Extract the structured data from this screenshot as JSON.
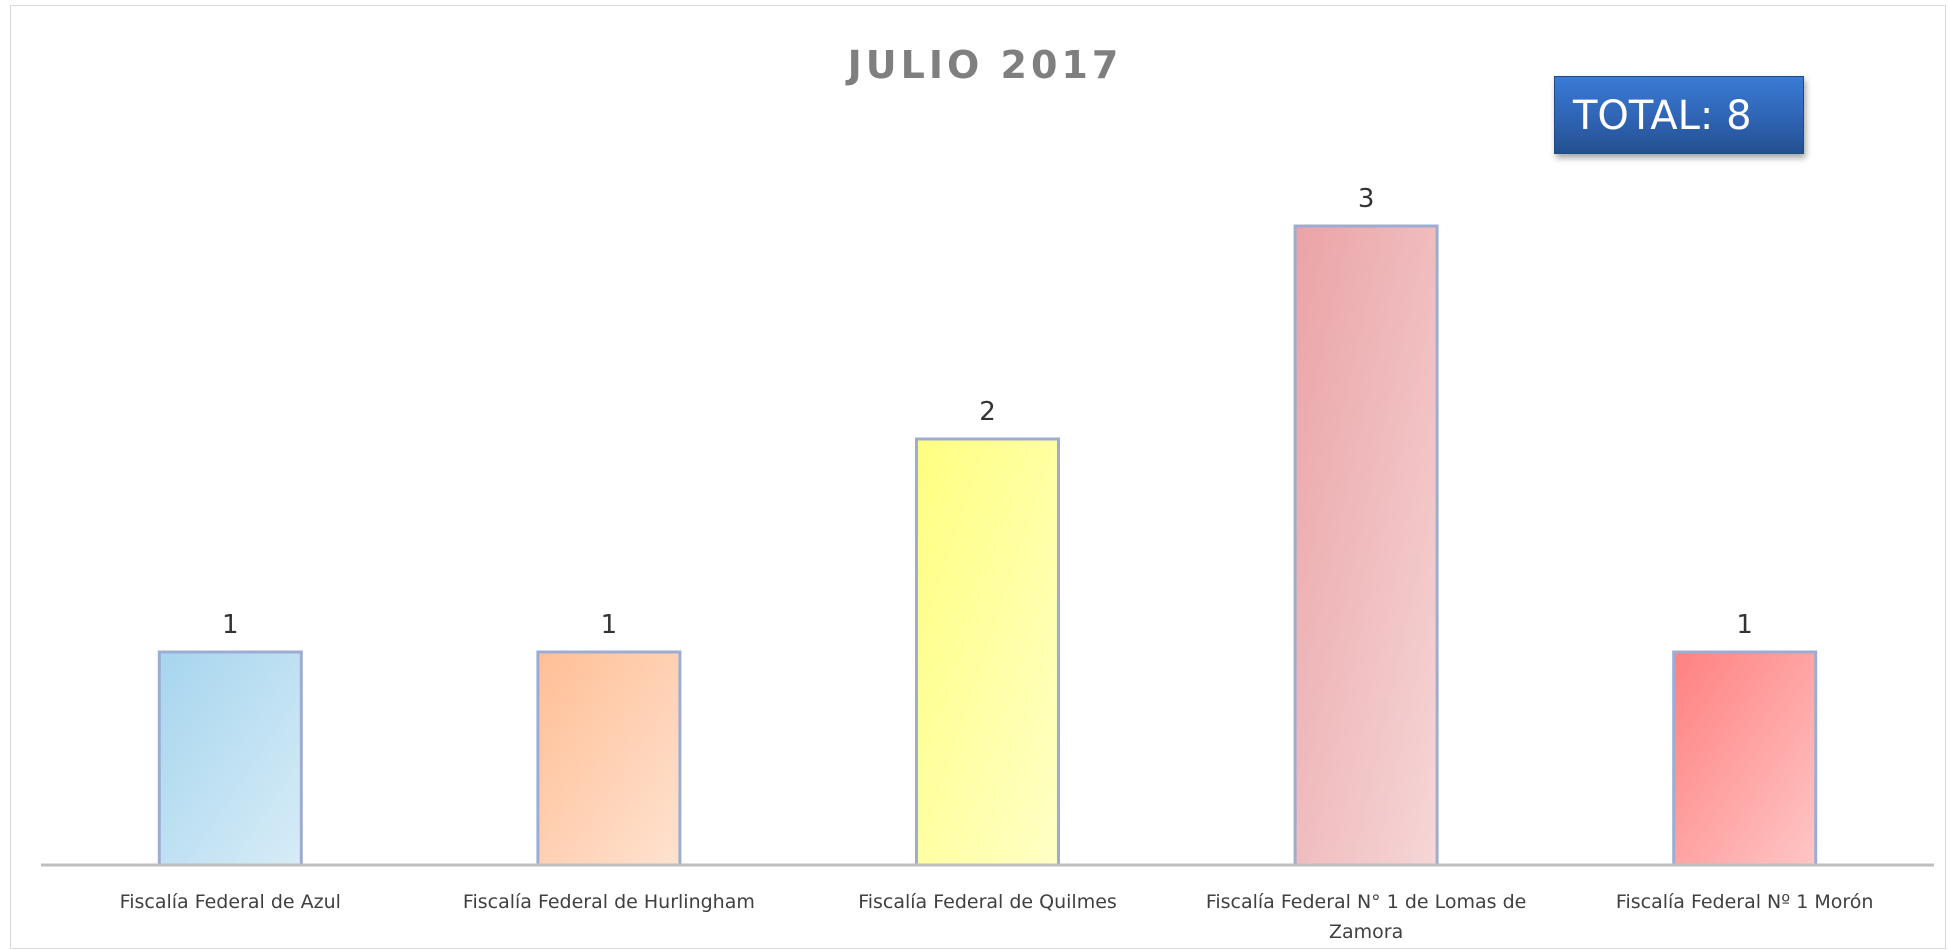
{
  "chart_data": {
    "type": "bar",
    "title": "JULIO 2017",
    "categories": [
      "Fiscalía Federal de Azul",
      "Fiscalía Federal de Hurlingham",
      "Fiscalía Federal de Quilmes",
      "Fiscalía Federal N° 1 de Lomas de Zamora",
      "Fiscalía Federal Nº 1 Morón"
    ],
    "values": [
      1,
      1,
      2,
      3,
      1
    ],
    "ylim": [
      0,
      3
    ],
    "xlabel": "",
    "ylabel": "",
    "grid": false,
    "legend": "none",
    "bar_colors": [
      "#a6d5ee",
      "#ffbf96",
      "#ffff80",
      "#eaa3a6",
      "#ff8080"
    ],
    "bar_border_color": "#9dadd2",
    "axis_color": "#bfbfbf",
    "annotation": {
      "text": "TOTAL: 8",
      "color": "#2f64b4"
    }
  }
}
